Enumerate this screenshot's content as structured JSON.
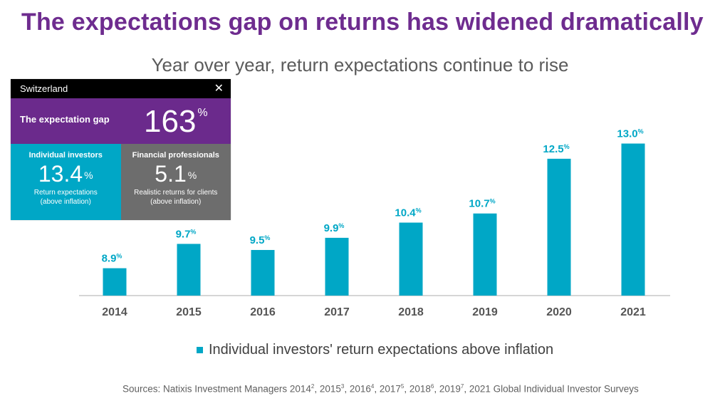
{
  "header": {
    "title": "The expectations gap on returns has widened dramatically",
    "subtitle": "Year over year, return expectations continue to rise"
  },
  "legend": {
    "label": "Individual investors' return expectations above inflation"
  },
  "sources": {
    "prefix": "Sources: Natixis Investment Managers 2014",
    "s1": "2",
    "t1": ", 2015",
    "s2": "3",
    "t2": ", 2016",
    "s3": "4",
    "t3": ", 2017",
    "s4": "5",
    "t4": ", 2018",
    "s5": "6",
    "t5": ", 2019",
    "s6": "7",
    "suffix": ", 2021 Global Individual Investor Surveys"
  },
  "card": {
    "country": "Switzerland",
    "close_glyph": "✕",
    "gap_label": "The expectation gap",
    "gap_value": "163",
    "percent": "%",
    "individual": {
      "heading": "Individual investors",
      "value": "13.4",
      "desc_line1": "Return expectations",
      "desc_line2": "(above inflation)"
    },
    "professional": {
      "heading": "Financial professionals",
      "value": "5.1",
      "desc_line1": "Realistic returns for clients",
      "desc_line2": "(above inflation)"
    }
  },
  "colors": {
    "bar": "#00a7c6",
    "title": "#6e2c8f",
    "label": "#00a7c6",
    "axis_text": "#555555"
  },
  "chart_data": {
    "type": "bar",
    "categories": [
      "2014",
      "2015",
      "2016",
      "2017",
      "2018",
      "2019",
      "2020",
      "2021"
    ],
    "values": [
      8.9,
      9.7,
      9.5,
      9.9,
      10.4,
      10.7,
      12.5,
      13.0
    ],
    "value_labels": [
      "8.9",
      "9.7",
      "9.5",
      "9.9",
      "10.4",
      "10.7",
      "12.5",
      "13.0"
    ],
    "label_suffix": "%",
    "series": [
      {
        "name": "Individual investors' return expectations above inflation",
        "values": [
          8.9,
          9.7,
          9.5,
          9.9,
          10.4,
          10.7,
          12.5,
          13.0
        ]
      }
    ],
    "ylim": [
      8,
      13.2
    ],
    "legend_position": "bottom",
    "grid": false
  }
}
